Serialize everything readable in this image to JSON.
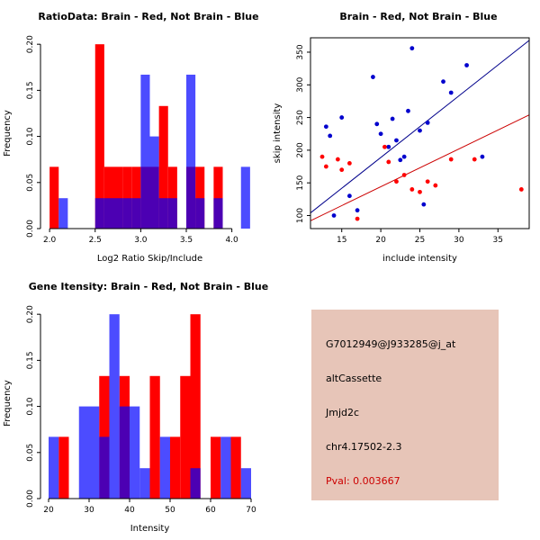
{
  "page": {
    "background": "#ffffff"
  },
  "chart_data": [
    {
      "type": "bar",
      "subtype": "histogram",
      "title": "RatioData: Brain - Red, Not Brain - Blue",
      "xlabel": "Log2 Ratio Skip/Include",
      "ylabel": "Frequency",
      "xlim": [
        1.9,
        4.3
      ],
      "ylim": [
        0,
        0.207
      ],
      "bin_width": 0.1,
      "grid": false,
      "xticks": {
        "values": [
          2.0,
          2.5,
          3.0,
          3.5,
          4.0
        ],
        "labels": [
          "2.0",
          "2.5",
          "3.0",
          "3.5",
          "4.0"
        ]
      },
      "yticks": {
        "values": [
          0,
          0.05,
          0.1,
          0.15,
          0.2
        ],
        "labels": [
          "0.00",
          "0.05",
          "0.10",
          "0.15",
          "0.20"
        ]
      },
      "series": [
        {
          "name": "Brain",
          "color": "#ff0000",
          "opacity": 1,
          "bins": [
            [
              2.0,
              0.067
            ],
            [
              2.5,
              0.2
            ],
            [
              2.6,
              0.067
            ],
            [
              2.7,
              0.067
            ],
            [
              2.8,
              0.067
            ],
            [
              2.9,
              0.067
            ],
            [
              3.0,
              0.067
            ],
            [
              3.1,
              0.067
            ],
            [
              3.2,
              0.133
            ],
            [
              3.3,
              0.067
            ],
            [
              3.5,
              0.067
            ],
            [
              3.6,
              0.067
            ],
            [
              3.8,
              0.067
            ]
          ]
        },
        {
          "name": "Not Brain",
          "color": "#0000ff",
          "opacity": 0.7,
          "bins": [
            [
              2.1,
              0.033
            ],
            [
              2.5,
              0.033
            ],
            [
              2.6,
              0.033
            ],
            [
              2.7,
              0.033
            ],
            [
              2.8,
              0.033
            ],
            [
              2.9,
              0.033
            ],
            [
              3.0,
              0.167
            ],
            [
              3.1,
              0.1
            ],
            [
              3.2,
              0.033
            ],
            [
              3.3,
              0.033
            ],
            [
              3.5,
              0.167
            ],
            [
              3.6,
              0.033
            ],
            [
              3.8,
              0.033
            ],
            [
              4.1,
              0.067
            ]
          ]
        }
      ]
    },
    {
      "type": "scatter",
      "title": "Brain - Red, Not Brain - Blue",
      "xlabel": "include intensity",
      "ylabel": "skip intensity",
      "xlim": [
        11,
        39
      ],
      "ylim": [
        80,
        372
      ],
      "box": true,
      "grid": false,
      "xticks": {
        "values": [
          15,
          20,
          25,
          30,
          35
        ],
        "labels": [
          "15",
          "20",
          "25",
          "30",
          "35"
        ]
      },
      "yticks": {
        "values": [
          100,
          150,
          200,
          250,
          300,
          350
        ],
        "labels": [
          "100",
          "150",
          "200",
          "250",
          "300",
          "350"
        ]
      },
      "lines": [
        {
          "name": "not-brain-fit",
          "color": "#00008b",
          "x": [
            11,
            39
          ],
          "y": [
            104,
            368
          ]
        },
        {
          "name": "brain-fit",
          "color": "#cc0000",
          "x": [
            11,
            39
          ],
          "y": [
            92,
            254
          ]
        }
      ],
      "series": [
        {
          "name": "Not Brain",
          "color": "#0000cd",
          "points": [
            [
              13,
              236
            ],
            [
              13.5,
              222
            ],
            [
              14,
              100
            ],
            [
              15,
              250
            ],
            [
              16,
              130
            ],
            [
              17,
              108
            ],
            [
              19,
              312
            ],
            [
              19.5,
              240
            ],
            [
              20,
              225
            ],
            [
              21,
              205
            ],
            [
              21.5,
              248
            ],
            [
              22,
              215
            ],
            [
              22.5,
              185
            ],
            [
              23,
              190
            ],
            [
              23.5,
              260
            ],
            [
              24,
              356
            ],
            [
              25,
              230
            ],
            [
              25.5,
              117
            ],
            [
              26,
              242
            ],
            [
              28,
              305
            ],
            [
              29,
              288
            ],
            [
              31,
              330
            ],
            [
              33,
              190
            ]
          ]
        },
        {
          "name": "Brain",
          "color": "#ff0000",
          "points": [
            [
              12.5,
              190
            ],
            [
              13,
              175
            ],
            [
              14.5,
              186
            ],
            [
              15,
              170
            ],
            [
              16,
              180
            ],
            [
              17,
              95
            ],
            [
              20.5,
              205
            ],
            [
              21,
              182
            ],
            [
              22,
              152
            ],
            [
              23,
              162
            ],
            [
              24,
              140
            ],
            [
              25,
              136
            ],
            [
              26,
              152
            ],
            [
              27,
              146
            ],
            [
              29,
              186
            ],
            [
              32,
              186
            ],
            [
              38,
              140
            ]
          ]
        }
      ]
    },
    {
      "type": "bar",
      "subtype": "histogram",
      "title": "Gene Itensity: Brain - Red, Not Brain - Blue",
      "xlabel": "Intensity",
      "ylabel": "Frequency",
      "xlim": [
        18,
        72
      ],
      "ylim": [
        0,
        0.207
      ],
      "bin_width": 2.5,
      "grid": false,
      "xticks": {
        "values": [
          20,
          30,
          40,
          50,
          60,
          70
        ],
        "labels": [
          "20",
          "30",
          "40",
          "50",
          "60",
          "70"
        ]
      },
      "yticks": {
        "values": [
          0,
          0.05,
          0.1,
          0.15,
          0.2
        ],
        "labels": [
          "0.00",
          "0.05",
          "0.10",
          "0.15",
          "0.20"
        ]
      },
      "series": [
        {
          "name": "Brain",
          "color": "#ff0000",
          "opacity": 1,
          "bins": [
            [
              22.5,
              0.067
            ],
            [
              32.5,
              0.133
            ],
            [
              37.5,
              0.133
            ],
            [
              45,
              0.133
            ],
            [
              50,
              0.067
            ],
            [
              52.5,
              0.133
            ],
            [
              55,
              0.2
            ],
            [
              60,
              0.067
            ],
            [
              65,
              0.067
            ]
          ]
        },
        {
          "name": "Not Brain",
          "color": "#0000ff",
          "opacity": 0.7,
          "bins": [
            [
              20,
              0.067
            ],
            [
              27.5,
              0.1
            ],
            [
              30,
              0.1
            ],
            [
              32.5,
              0.067
            ],
            [
              35,
              0.2
            ],
            [
              37.5,
              0.1
            ],
            [
              40,
              0.1
            ],
            [
              42.5,
              0.033
            ],
            [
              47.5,
              0.067
            ],
            [
              55,
              0.033
            ],
            [
              62.5,
              0.067
            ],
            [
              67.5,
              0.033
            ]
          ]
        }
      ]
    }
  ],
  "info_panel": {
    "background": "#e7c5b8",
    "lines": [
      {
        "text": "G7012949@J933285@j_at",
        "color": "#000000"
      },
      {
        "text": "altCassette",
        "color": "#000000"
      },
      {
        "text": "Jmjd2c",
        "color": "#000000"
      },
      {
        "text": "chr4.17502-2.3",
        "color": "#000000"
      },
      {
        "text": "Pval: 0.003667",
        "color": "#cc0000"
      }
    ]
  }
}
